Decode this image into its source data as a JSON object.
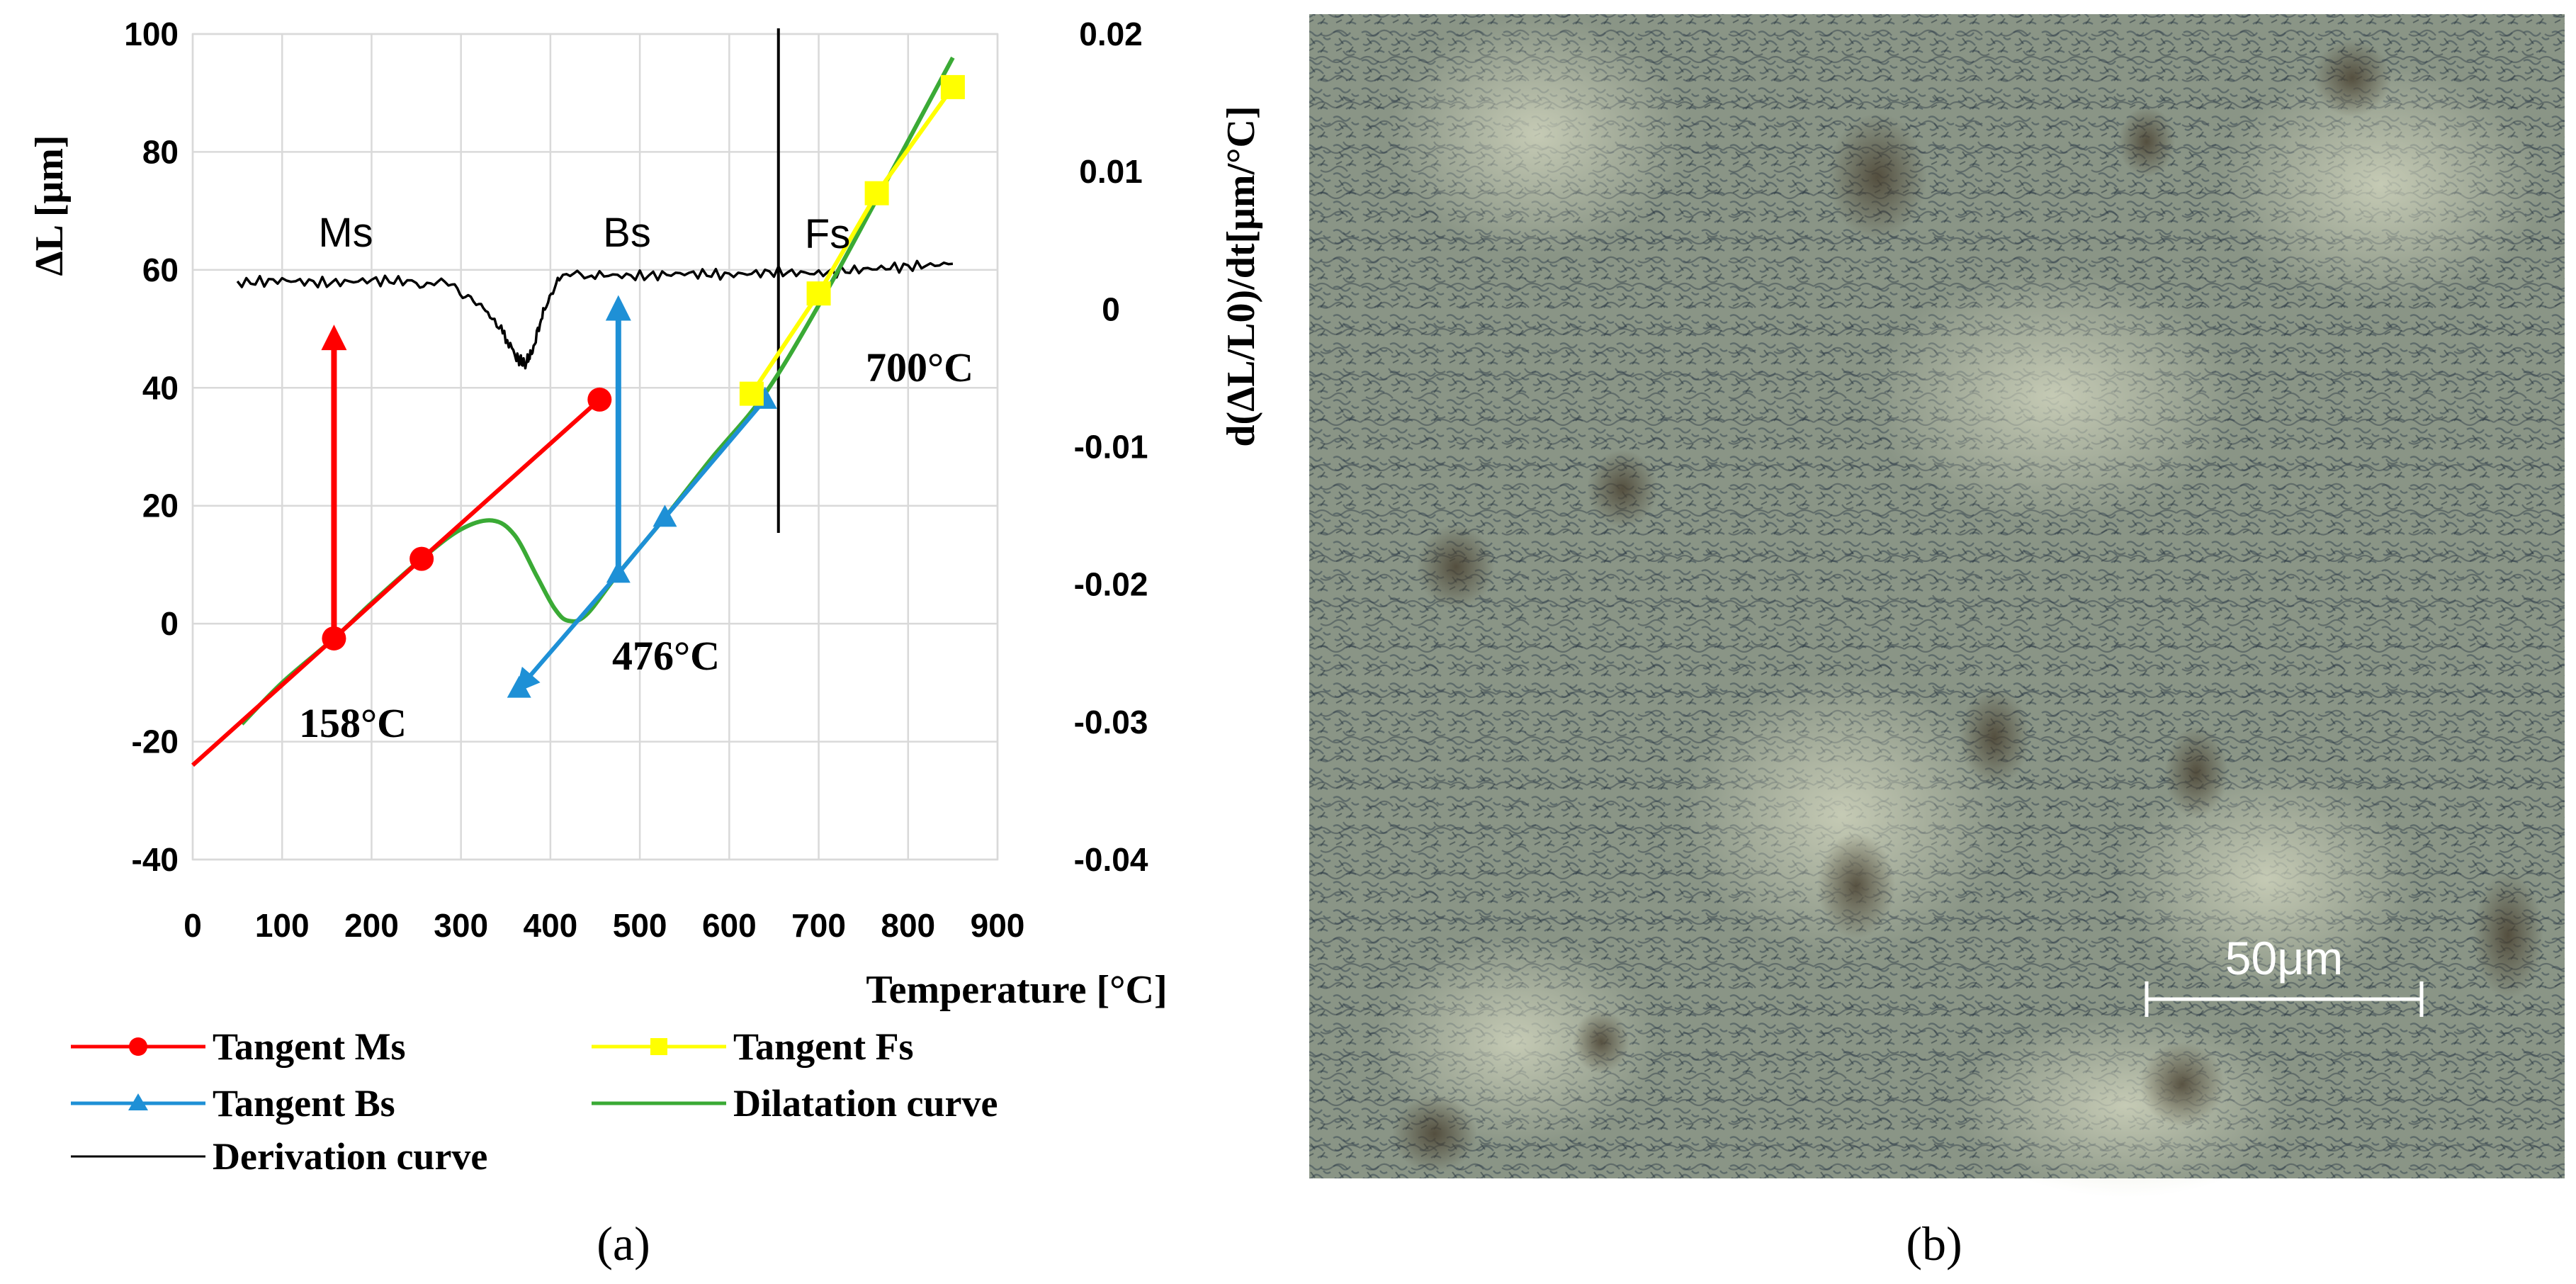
{
  "chart_data": {
    "type": "line",
    "xlabel": "Temperature [°C]",
    "ylabel": "ΔL [μm]",
    "y2label": "d(ΔL/L0)/dt[μm/°C]",
    "xlim": [
      0,
      900
    ],
    "ylim": [
      -40,
      100
    ],
    "y2lim": [
      -0.04,
      0.02
    ],
    "x_ticks": [
      0,
      100,
      200,
      300,
      400,
      500,
      600,
      700,
      800,
      900
    ],
    "y_ticks": [
      -40,
      -20,
      0,
      20,
      40,
      60,
      80,
      100
    ],
    "y2_ticks": [
      "-0.04",
      "-0.03",
      "-0.02",
      "-0.01",
      "0",
      "0.01",
      "0.02"
    ],
    "grid": true,
    "legend_position": "bottom",
    "annotations": {
      "ms": "Ms",
      "bs": "Bs",
      "fs": "Fs",
      "t_ms": "158°C",
      "t_bs": "476°C",
      "t_fs": "700°C"
    },
    "series": [
      {
        "name": "Tangent Ms",
        "color": "#ff0000",
        "marker": "circle",
        "axis": "left",
        "points": [
          [
            0,
            -24
          ],
          [
            158,
            -2.5
          ],
          [
            256,
            11
          ],
          [
            455,
            38
          ]
        ],
        "marker_points": [
          [
            158,
            -2.5
          ],
          [
            256,
            11
          ],
          [
            455,
            38
          ]
        ]
      },
      {
        "name": "Tangent Fs",
        "color": "#ffff00",
        "marker": "square",
        "axis": "left",
        "points": [
          [
            625,
            39
          ],
          [
            700,
            56
          ],
          [
            765,
            73
          ],
          [
            850,
            91
          ]
        ],
        "marker_points": [
          [
            625,
            39
          ],
          [
            700,
            56
          ],
          [
            765,
            73
          ],
          [
            850,
            91
          ]
        ]
      },
      {
        "name": "Tangent Bs",
        "color": "#1e90d6",
        "marker": "triangle",
        "axis": "left",
        "points": [
          [
            365,
            -11
          ],
          [
            476,
            8.5
          ],
          [
            528,
            18
          ],
          [
            640,
            38
          ]
        ],
        "marker_points": [
          [
            365,
            -11
          ],
          [
            476,
            8.5
          ],
          [
            528,
            18
          ],
          [
            640,
            38
          ]
        ]
      },
      {
        "name": "Dilatation curve",
        "color": "#3aaa35",
        "marker": "none",
        "axis": "left",
        "points": [
          [
            55,
            -17
          ],
          [
            100,
            -10
          ],
          [
            158,
            -2.5
          ],
          [
            200,
            3.5
          ],
          [
            256,
            11
          ],
          [
            300,
            16
          ],
          [
            335,
            17.5
          ],
          [
            360,
            15
          ],
          [
            385,
            8
          ],
          [
            405,
            2.5
          ],
          [
            420,
            0.5
          ],
          [
            440,
            1.5
          ],
          [
            476,
            8.5
          ],
          [
            528,
            18
          ],
          [
            580,
            28
          ],
          [
            640,
            39
          ],
          [
            700,
            54
          ],
          [
            765,
            72
          ],
          [
            850,
            96
          ]
        ]
      },
      {
        "name": "Derivation curve",
        "color": "#000000",
        "marker": "none",
        "axis": "right",
        "points": [
          [
            50,
            0.0019
          ],
          [
            100,
            0.0021
          ],
          [
            150,
            0.0019
          ],
          [
            200,
            0.0021
          ],
          [
            250,
            0.002
          ],
          [
            290,
            0.0017
          ],
          [
            320,
            0.0005
          ],
          [
            345,
            -0.0015
          ],
          [
            362,
            -0.0035
          ],
          [
            372,
            -0.004
          ],
          [
            380,
            -0.003
          ],
          [
            392,
            -0.0002
          ],
          [
            410,
            0.0023
          ],
          [
            450,
            0.0025
          ],
          [
            500,
            0.0024
          ],
          [
            550,
            0.0026
          ],
          [
            600,
            0.0025
          ],
          [
            650,
            0.0027
          ],
          [
            700,
            0.0026
          ],
          [
            750,
            0.0029
          ],
          [
            800,
            0.0031
          ],
          [
            850,
            0.0033
          ]
        ]
      }
    ],
    "arrows": [
      {
        "series": "Tangent Ms",
        "x": 158,
        "y_from": -2.5,
        "y_to": 50
      },
      {
        "series": "Tangent Bs",
        "x": 476,
        "y_from": 8.5,
        "y_to": 55
      }
    ],
    "vline_x": 655
  },
  "panels": {
    "a_label": "(a)",
    "b_label": "(b)",
    "scale_bar": "50μm"
  }
}
